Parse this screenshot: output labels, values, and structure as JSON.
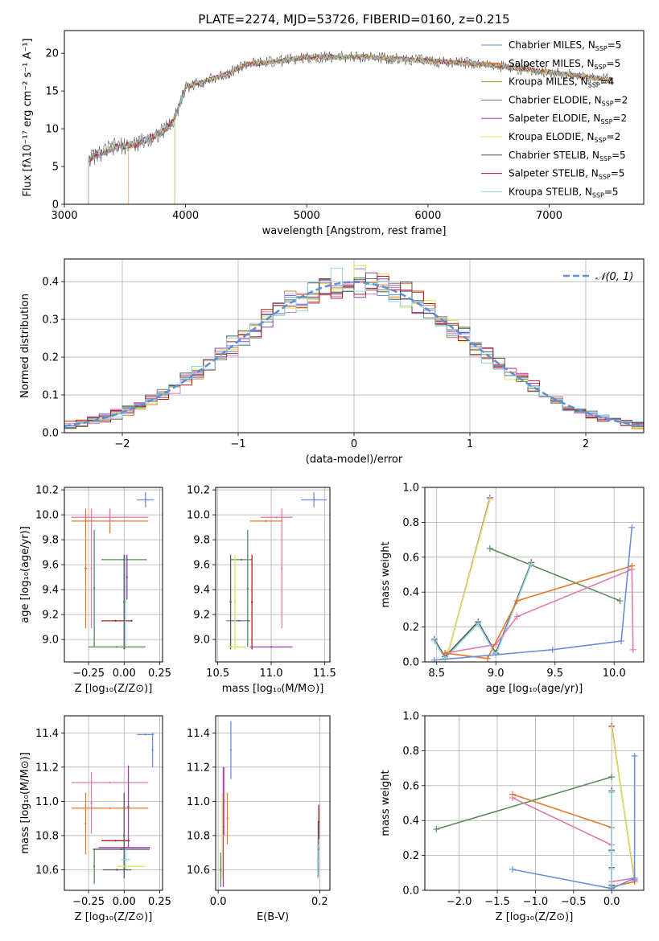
{
  "title": "PLATE=2274, MJD=53726, FIBERID=0160, z=0.215",
  "colors": {
    "chabrier_miles": "#6a8fd8",
    "salpeter_miles": "#e07b2a",
    "kroupa_miles": "#a6932a",
    "chabrier_elodie": "#5a8a5a",
    "salpeter_elodie": "#9b3fb0",
    "kroupa_elodie": "#dfe35a",
    "chabrier_stelib": "#555555",
    "salpeter_stelib": "#b01c1c",
    "kroupa_stelib": "#8fd3e0",
    "salpeter_elodie_pink": "#e07bb0"
  },
  "chart_data": [
    {
      "id": "spectrum",
      "type": "line",
      "xlabel": "wavelength [Angstrom, rest frame]",
      "ylabel": "Flux [fλ10⁻¹⁷ erg cm⁻² s⁻¹ A⁻¹]",
      "xlim": [
        3000,
        7780
      ],
      "ylim": [
        0,
        23
      ],
      "xticks": [
        "3000",
        "4000",
        "5000",
        "6000",
        "7000"
      ],
      "yticks": [
        "0",
        "5",
        "10",
        "15",
        "20"
      ],
      "legend_position": "top-right",
      "legend": [
        "Chabrier MILES, N_SSP=5",
        "Salpeter MILES, N_SSP=5",
        "Kroupa MILES, N_SSP=4",
        "Chabrier ELODIE, N_SSP=2",
        "Salpeter ELODIE, N_SSP=2",
        "Kroupa ELODIE, N_SSP=2",
        "Chabrier STELIB, N_SSP=5",
        "Salpeter STELIB, N_SSP=5",
        "Kroupa STELIB, N_SSP=5"
      ],
      "legend_main": [
        "Chabrier MILES, N",
        "Salpeter MILES, N",
        "Kroupa MILES, N",
        "Chabrier ELODIE, N",
        "Salpeter ELODIE, N",
        "Kroupa ELODIE, N",
        "Chabrier STELIB, N",
        "Salpeter STELIB, N",
        "Kroupa STELIB, N"
      ],
      "legend_sub": "SSP",
      "legend_val": [
        "=5",
        "=5",
        "=4",
        "=2",
        "=2",
        "=2",
        "=5",
        "=5",
        "=5"
      ],
      "continuum": [
        [
          3200,
          6
        ],
        [
          3400,
          7.5
        ],
        [
          3600,
          8
        ],
        [
          3800,
          9.5
        ],
        [
          3900,
          11
        ],
        [
          4000,
          15.5
        ],
        [
          4100,
          16
        ],
        [
          4300,
          17
        ],
        [
          4500,
          18.5
        ],
        [
          4800,
          19
        ],
        [
          5000,
          19.5
        ],
        [
          5500,
          19.5
        ],
        [
          6000,
          19
        ],
        [
          6500,
          18.5
        ],
        [
          7000,
          17.5
        ],
        [
          7500,
          16.5
        ]
      ],
      "series_start": [
        3200,
        3530,
        3910,
        3200,
        3200,
        3200,
        3200,
        3200,
        3200
      ]
    },
    {
      "id": "residuals",
      "type": "step",
      "xlabel": "(data-model)/error",
      "ylabel": "Normed distribution",
      "xlim": [
        -2.5,
        2.5
      ],
      "ylim": [
        0,
        0.46
      ],
      "xticks": [
        "−2",
        "−1",
        "0",
        "1",
        "2"
      ],
      "yticks": [
        "0.0",
        "0.1",
        "0.2",
        "0.3",
        "0.4"
      ],
      "legend": "𝒩(0, 1)",
      "legend_position": "top-right",
      "bin_width": 0.1,
      "normal_mean": 0,
      "normal_sigma": 1
    },
    {
      "id": "age_vs_Z",
      "type": "errorbar",
      "xlabel": "Z [log₁₀(Z/Z⊙)]",
      "ylabel": "age  [log₁₀(age/yr)]",
      "xlim": [
        -0.42,
        0.27
      ],
      "ylim": [
        8.82,
        10.22
      ],
      "xticks": [
        "−0.25",
        "0.00",
        "0.25"
      ],
      "yticks": [
        "9.0",
        "9.2",
        "9.4",
        "9.6",
        "9.8",
        "10.0",
        "10.2"
      ],
      "points": [
        {
          "c": "chabrier_miles",
          "x": 0.15,
          "xerr": 0.06,
          "y": 10.12,
          "yerr": 0.06
        },
        {
          "c": "salpeter_miles",
          "x": -0.1,
          "xerr": 0.27,
          "y": 9.95,
          "yerr": 0.1
        },
        {
          "c": "salpeter_miles",
          "x": -0.27,
          "xerr": 0.01,
          "y": 9.57,
          "yerr": 0.48
        },
        {
          "c": "salpeter_elodie_pink",
          "x": -0.1,
          "xerr": 0.27,
          "y": 9.98,
          "yerr": 0.05
        },
        {
          "c": "salpeter_elodie_pink",
          "x": -0.23,
          "xerr": 0.005,
          "y": 9.57,
          "yerr": 0.48
        },
        {
          "c": "chabrier_elodie",
          "x": 0.0,
          "xerr": 0.16,
          "y": 9.64,
          "yerr": 0.0
        },
        {
          "c": "chabrier_elodie",
          "x": -0.21,
          "xerr": 0.005,
          "y": 9.41,
          "yerr": 0.47
        },
        {
          "c": "salpeter_elodie",
          "x": 0.02,
          "xerr": 0.005,
          "y": 9.5,
          "yerr": 0.18
        },
        {
          "c": "salpeter_stelib",
          "x": -0.06,
          "xerr": 0.1,
          "y": 9.15,
          "yerr": 0.0
        },
        {
          "c": "chabrier_stelib",
          "x": 0.05,
          "xerr": 0.01,
          "y": 9.15,
          "yerr": 0.0
        },
        {
          "c": "chabrier_stelib",
          "x": 0.0,
          "xerr": 0.005,
          "y": 9.3,
          "yerr": 0.38
        },
        {
          "c": "kroupa_stelib",
          "x": 0.01,
          "xerr": 0.005,
          "y": 9.3,
          "yerr": 0.38
        },
        {
          "c": "kroupa_elodie",
          "x": -0.05,
          "xerr": 0.2,
          "y": 8.94,
          "yerr": 0.0
        },
        {
          "c": "chabrier_elodie",
          "x": -0.05,
          "xerr": 0.2,
          "y": 8.94,
          "yerr": 0.0
        }
      ]
    },
    {
      "id": "age_vs_mass",
      "type": "errorbar",
      "xlabel": "mass [log₁₀(M/M⊙)]",
      "ylabel": "",
      "xlim": [
        10.48,
        11.55
      ],
      "ylim": [
        8.82,
        10.22
      ],
      "xticks": [
        "10.5",
        "11.0",
        "11.5"
      ],
      "yticks": [
        "9.0",
        "9.2",
        "9.4",
        "9.6",
        "9.8",
        "10.0",
        "10.2"
      ],
      "points": [
        {
          "c": "chabrier_miles",
          "x": 11.4,
          "xerr": 0.12,
          "y": 10.12,
          "yerr": 0.06
        },
        {
          "c": "salpeter_elodie_pink",
          "x": 11.05,
          "xerr": 0.15,
          "y": 9.98,
          "yerr": 0.0
        },
        {
          "c": "salpeter_elodie_pink",
          "x": 11.1,
          "xerr": 0.005,
          "y": 9.57,
          "yerr": 0.48
        },
        {
          "c": "salpeter_miles",
          "x": 10.95,
          "xerr": 0.15,
          "y": 9.95,
          "yerr": 0.0
        },
        {
          "c": "chabrier_elodie",
          "x": 10.72,
          "xerr": 0.1,
          "y": 9.64,
          "yerr": 0.0
        },
        {
          "c": "chabrier_elodie",
          "x": 10.78,
          "xerr": 0.005,
          "y": 9.41,
          "yerr": 0.47
        },
        {
          "c": "salpeter_stelib",
          "x": 10.82,
          "xerr": 0.005,
          "y": 9.3,
          "yerr": 0.38
        },
        {
          "c": "salpeter_stelib",
          "x": 10.7,
          "xerr": 0.1,
          "y": 9.15,
          "yerr": 0.0
        },
        {
          "c": "chabrier_miles",
          "x": 10.68,
          "xerr": 0.1,
          "y": 9.15,
          "yerr": 0.0
        },
        {
          "c": "chabrier_stelib",
          "x": 10.62,
          "xerr": 0.005,
          "y": 9.3,
          "yerr": 0.38
        },
        {
          "c": "kroupa_elodie",
          "x": 10.66,
          "xerr": 0.005,
          "y": 9.3,
          "yerr": 0.38
        },
        {
          "c": "salpeter_elodie",
          "x": 11.0,
          "xerr": 0.2,
          "y": 8.94,
          "yerr": 0.0
        },
        {
          "c": "kroupa_elodie",
          "x": 10.68,
          "xerr": 0.08,
          "y": 8.94,
          "yerr": 0.0
        }
      ]
    },
    {
      "id": "weight_vs_age",
      "type": "line",
      "xlabel": "age  [log₁₀(age/yr)]",
      "ylabel": "mass weight",
      "xlim": [
        8.4,
        10.25
      ],
      "ylim": [
        0,
        1.0
      ],
      "xticks": [
        "8.5",
        "9.0",
        "9.5",
        "10.0"
      ],
      "yticks": [
        "0.0",
        "0.2",
        "0.4",
        "0.6",
        "0.8",
        "1.0"
      ],
      "series": [
        {
          "c": "salpeter_elodie",
          "x": [
            8.6,
            8.95
          ],
          "y": [
            0.06,
            0.94
          ]
        },
        {
          "c": "kroupa_elodie",
          "x": [
            8.6,
            8.95
          ],
          "y": [
            0.06,
            0.93
          ]
        },
        {
          "c": "chabrier_elodie",
          "x": [
            8.95,
            10.05
          ],
          "y": [
            0.65,
            0.35
          ]
        },
        {
          "c": "chabrier_stelib",
          "x": [
            8.48,
            8.57,
            8.85,
            9.0,
            9.3
          ],
          "y": [
            0.13,
            0.03,
            0.23,
            0.05,
            0.57
          ]
        },
        {
          "c": "kroupa_stelib",
          "x": [
            8.48,
            8.57,
            8.85,
            9.0,
            9.3
          ],
          "y": [
            0.12,
            0.02,
            0.22,
            0.04,
            0.56
          ]
        },
        {
          "c": "salpeter_elodie_pink",
          "x": [
            8.57,
            9.0,
            9.18,
            10.15,
            10.16
          ],
          "y": [
            0.05,
            0.1,
            0.26,
            0.53,
            0.07
          ]
        },
        {
          "c": "salpeter_miles",
          "x": [
            8.57,
            8.93,
            9.18,
            10.15
          ],
          "y": [
            0.05,
            0.02,
            0.35,
            0.55
          ]
        },
        {
          "c": "chabrier_miles",
          "x": [
            8.48,
            9.48,
            10.06,
            10.15
          ],
          "y": [
            0.01,
            0.07,
            0.12,
            0.77
          ]
        }
      ]
    },
    {
      "id": "mass_vs_Z",
      "type": "errorbar",
      "xlabel": "Z [log₁₀(Z/Z⊙)]",
      "ylabel": "mass [log₁₀(M/M⊙)]",
      "xlim": [
        -0.42,
        0.27
      ],
      "ylim": [
        10.48,
        11.5
      ],
      "xticks": [
        "−0.25",
        "0.00",
        "0.25"
      ],
      "yticks": [
        "10.6",
        "10.8",
        "11.0",
        "11.2",
        "11.4"
      ],
      "points": [
        {
          "c": "chabrier_miles",
          "x": 0.15,
          "xerr": 0.06,
          "y": 11.39,
          "yerr": 0.0
        },
        {
          "c": "chabrier_miles",
          "x": 0.2,
          "xerr": 0.005,
          "y": 11.3,
          "yerr": 0.1
        },
        {
          "c": "salpeter_elodie_pink",
          "x": -0.1,
          "xerr": 0.27,
          "y": 11.11,
          "yerr": 0.0
        },
        {
          "c": "salpeter_elodie_pink",
          "x": -0.23,
          "xerr": 0.005,
          "y": 10.99,
          "yerr": 0.18
        },
        {
          "c": "salpeter_miles",
          "x": -0.1,
          "xerr": 0.27,
          "y": 10.96,
          "yerr": 0.0
        },
        {
          "c": "salpeter_miles",
          "x": -0.27,
          "xerr": 0.005,
          "y": 10.87,
          "yerr": 0.18
        },
        {
          "c": "salpeter_elodie",
          "x": 0.03,
          "xerr": 0.005,
          "y": 10.97,
          "yerr": 0.24
        },
        {
          "c": "chabrier_elodie",
          "x": -0.21,
          "xerr": 0.005,
          "y": 10.62,
          "yerr": 0.1
        },
        {
          "c": "salpeter_stelib",
          "x": -0.06,
          "xerr": 0.1,
          "y": 10.77,
          "yerr": 0.0
        },
        {
          "c": "chabrier_stelib",
          "x": -0.02,
          "xerr": 0.2,
          "y": 10.72,
          "yerr": 0.0
        },
        {
          "c": "salpeter_elodie",
          "x": 0.0,
          "xerr": 0.18,
          "y": 10.73,
          "yerr": 0.0
        },
        {
          "c": "chabrier_stelib",
          "x": 0.0,
          "xerr": 0.005,
          "y": 10.8,
          "yerr": 0.25
        },
        {
          "c": "kroupa_stelib",
          "x": 0.01,
          "xerr": 0.03,
          "y": 10.66,
          "yerr": 0.06
        },
        {
          "c": "kroupa_elodie",
          "x": 0.05,
          "xerr": 0.1,
          "y": 10.62,
          "yerr": 0.0
        },
        {
          "c": "chabrier_stelib",
          "x": -0.05,
          "xerr": 0.1,
          "y": 10.6,
          "yerr": 0.0
        }
      ]
    },
    {
      "id": "mass_vs_EBV",
      "type": "errorbar",
      "xlabel": "E(B-V)",
      "ylabel": "",
      "xlim": [
        -0.005,
        0.22
      ],
      "ylim": [
        10.48,
        11.5
      ],
      "xticks": [
        "0.0",
        "0.2"
      ],
      "yticks": [
        "10.6",
        "10.8",
        "11.0",
        "11.2",
        "11.4"
      ],
      "points": [
        {
          "c": "chabrier_miles",
          "x": 0.025,
          "xerr": 0.0,
          "y": 11.3,
          "yerr": 0.17
        },
        {
          "c": "salpeter_elodie_pink",
          "x": 0.012,
          "xerr": 0.0,
          "y": 11.0,
          "yerr": 0.2
        },
        {
          "c": "salpeter_elodie",
          "x": 0.01,
          "xerr": 0.0,
          "y": 10.85,
          "yerr": 0.35
        },
        {
          "c": "salpeter_miles",
          "x": 0.018,
          "xerr": 0.0,
          "y": 10.9,
          "yerr": 0.15
        },
        {
          "c": "kroupa_elodie",
          "x": 0.008,
          "xerr": 0.0,
          "y": 10.8,
          "yerr": 0.25
        },
        {
          "c": "chabrier_elodie",
          "x": 0.005,
          "xerr": 0.0,
          "y": 10.6,
          "yerr": 0.1
        },
        {
          "c": "salpeter_stelib",
          "x": 0.198,
          "xerr": 0.0,
          "y": 10.88,
          "yerr": 0.1
        },
        {
          "c": "chabrier_stelib",
          "x": 0.197,
          "xerr": 0.0,
          "y": 10.72,
          "yerr": 0.16
        },
        {
          "c": "kroupa_stelib",
          "x": 0.196,
          "xerr": 0.0,
          "y": 10.65,
          "yerr": 0.1
        }
      ]
    },
    {
      "id": "weight_vs_Z",
      "type": "line",
      "xlabel": "Z [log₁₀(Z/Z⊙)]",
      "ylabel": "mass weight",
      "xlim": [
        -2.45,
        0.42
      ],
      "ylim": [
        0,
        1.0
      ],
      "xticks": [
        "−2.0",
        "−1.5",
        "−1.0",
        "−0.5",
        "0.0"
      ],
      "yticks": [
        "0.0",
        "0.2",
        "0.4",
        "0.6",
        "0.8",
        "1.0"
      ],
      "series": [
        {
          "c": "chabrier_elodie",
          "x": [
            -2.3,
            0.0
          ],
          "y": [
            0.35,
            0.65
          ]
        },
        {
          "c": "salpeter_miles",
          "x": [
            -1.3,
            0.0,
            0.0,
            0.3
          ],
          "y": [
            0.55,
            0.36,
            0.02,
            0.05
          ]
        },
        {
          "c": "salpeter_elodie_pink",
          "x": [
            -1.3,
            0.0,
            0.0,
            0.3
          ],
          "y": [
            0.53,
            0.26,
            0.05,
            0.07
          ]
        },
        {
          "c": "salpeter_elodie",
          "x": [
            0.0,
            0.3
          ],
          "y": [
            0.94,
            0.06
          ]
        },
        {
          "c": "kroupa_elodie",
          "x": [
            0.0,
            0.3
          ],
          "y": [
            0.93,
            0.07
          ]
        },
        {
          "c": "chabrier_stelib",
          "x": [
            0.0,
            0.0,
            0.0,
            0.0
          ],
          "y": [
            0.57,
            0.23,
            0.13,
            0.03
          ]
        },
        {
          "c": "kroupa_stelib",
          "x": [
            0.0,
            0.0,
            0.0,
            0.0
          ],
          "y": [
            0.56,
            0.22,
            0.12,
            0.02
          ]
        },
        {
          "c": "chabrier_miles",
          "x": [
            -1.3,
            0.0,
            0.3,
            0.3
          ],
          "y": [
            0.12,
            0.01,
            0.07,
            0.77
          ]
        }
      ]
    }
  ]
}
